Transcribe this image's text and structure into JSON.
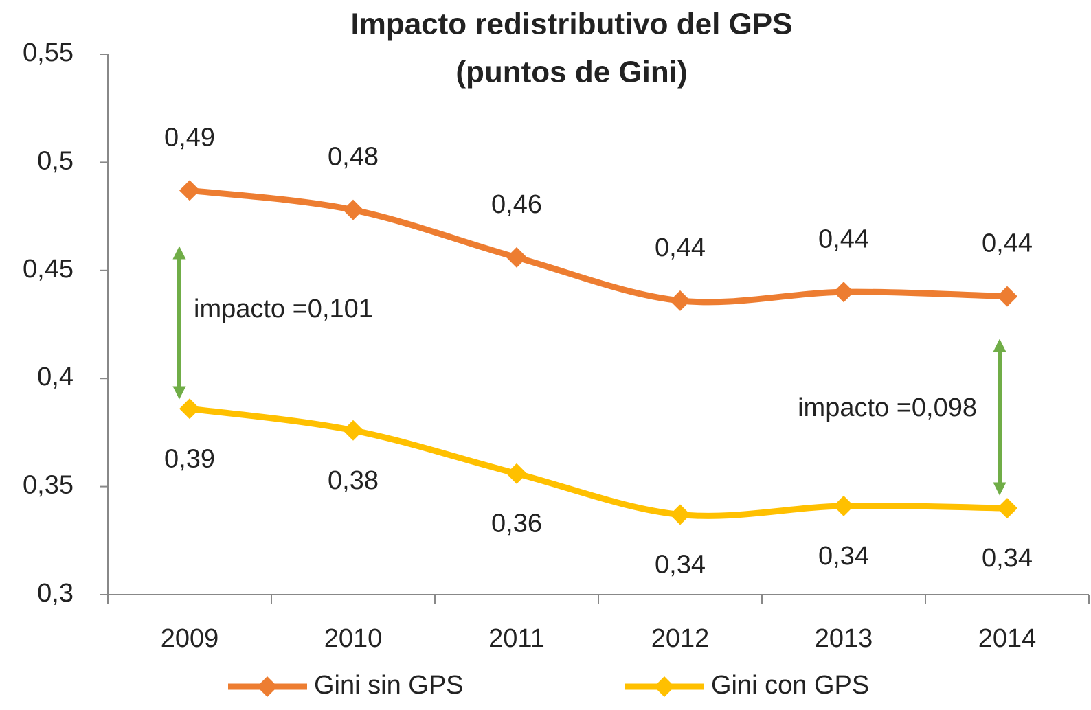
{
  "chart_data": {
    "type": "line",
    "title": "Impacto redistributivo del GPS",
    "subtitle": "(puntos de Gini)",
    "categories": [
      "2009",
      "2010",
      "2011",
      "2012",
      "2013",
      "2014"
    ],
    "series": [
      {
        "name": "Gini sin GPS",
        "color": "#ED7D31",
        "values": [
          0.487,
          0.478,
          0.456,
          0.436,
          0.44,
          0.438
        ],
        "value_labels": [
          "0,49",
          "0,48",
          "0,46",
          "0,44",
          "0,44",
          "0,44"
        ]
      },
      {
        "name": "Gini con GPS",
        "color": "#FFC000",
        "values": [
          0.386,
          0.376,
          0.356,
          0.337,
          0.341,
          0.34
        ],
        "value_labels": [
          "0,39",
          "0,38",
          "0,36",
          "0,34",
          "0,34",
          "0,34"
        ]
      }
    ],
    "annotations": [
      "impacto =0,101",
      "impacto =0,098"
    ],
    "ylim": [
      0.3,
      0.55
    ],
    "yticks": [
      {
        "value": 0.3,
        "label": "0,3"
      },
      {
        "value": 0.35,
        "label": "0,35"
      },
      {
        "value": 0.4,
        "label": "0,4"
      },
      {
        "value": 0.45,
        "label": "0,45"
      },
      {
        "value": 0.5,
        "label": "0,5"
      },
      {
        "value": 0.55,
        "label": "0,55"
      }
    ],
    "smooth": true,
    "grid": false
  }
}
